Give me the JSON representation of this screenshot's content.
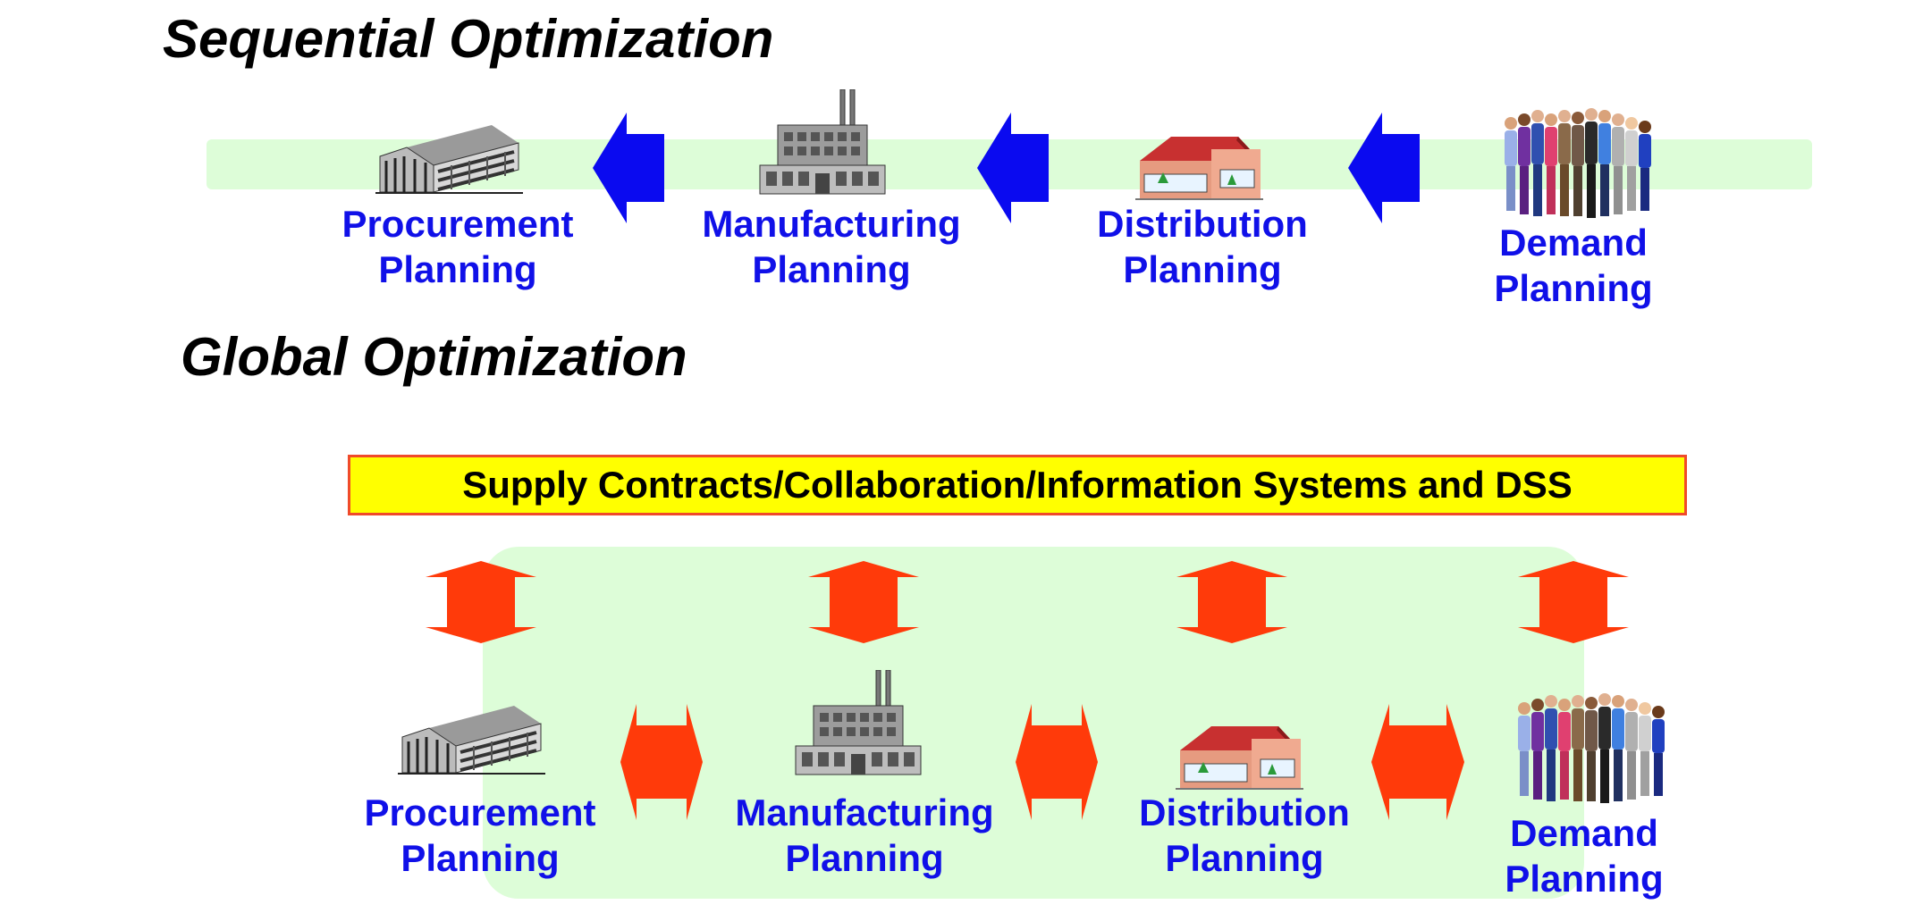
{
  "sequential": {
    "title": "Sequential Optimization",
    "stages": [
      {
        "line1": "Procurement",
        "line2": "Planning",
        "icon": "office-building-icon"
      },
      {
        "line1": "Manufacturing",
        "line2": "Planning",
        "icon": "factory-icon"
      },
      {
        "line1": "Distribution",
        "line2": "Planning",
        "icon": "store-icon"
      },
      {
        "line1": "Demand",
        "line2": "Planning",
        "icon": "people-group-icon"
      }
    ]
  },
  "global": {
    "title": "Global Optimization",
    "banner": "Supply Contracts/Collaboration/Information Systems and DSS",
    "stages": [
      {
        "line1": "Procurement",
        "line2": "Planning",
        "icon": "office-building-icon"
      },
      {
        "line1": "Manufacturing",
        "line2": "Planning",
        "icon": "factory-icon"
      },
      {
        "line1": "Distribution",
        "line2": "Planning",
        "icon": "store-icon"
      },
      {
        "line1": "Demand",
        "line2": "Planning",
        "icon": "people-group-icon"
      }
    ]
  },
  "colors": {
    "label": "#1010e8",
    "sequential_arrow": "#0a0af0",
    "global_arrow": "#ff3a0a",
    "band": "#ddfdd8",
    "banner_fill": "#ffff00",
    "banner_border": "#f04a2a"
  }
}
